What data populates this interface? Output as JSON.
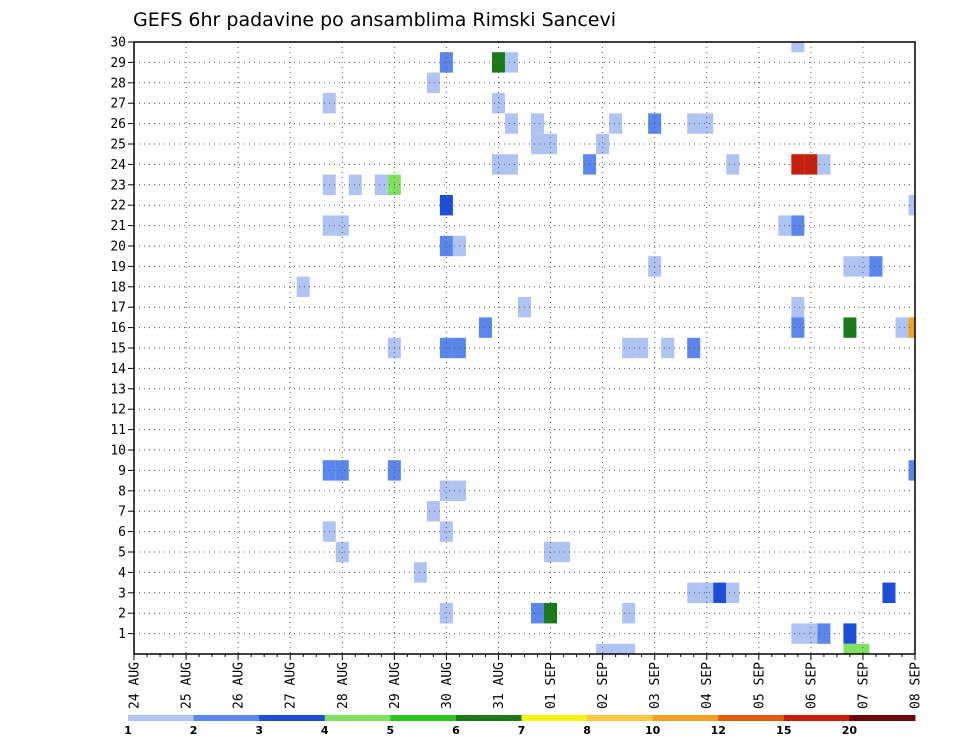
{
  "chart_data": {
    "type": "heatmap",
    "title": "GEFS 6hr padavine po ansamblima Rimski Sancevi",
    "x_tick_labels": [
      "24 AUG",
      "25 AUG",
      "26 AUG",
      "27 AUG",
      "28 AUG",
      "29 AUG",
      "30 AUG",
      "31 AUG",
      "01 SEP",
      "02 SEP",
      "03 SEP",
      "04 SEP",
      "05 SEP",
      "06 SEP",
      "07 SEP",
      "08 SEP"
    ],
    "x_unit": "6-hour steps from 24 AUG 00Z",
    "y_tick_labels": [
      "1",
      "2",
      "3",
      "4",
      "5",
      "6",
      "7",
      "8",
      "9",
      "10",
      "11",
      "12",
      "13",
      "14",
      "15",
      "16",
      "17",
      "18",
      "19",
      "20",
      "21",
      "22",
      "23",
      "24",
      "25",
      "26",
      "27",
      "28",
      "29",
      "30"
    ],
    "ylim": [
      0,
      30
    ],
    "grid": true,
    "legend_levels": [
      "1",
      "2",
      "3",
      "4",
      "5",
      "6",
      "7",
      "8",
      "10",
      "12",
      "15",
      "20"
    ],
    "legend_colors": [
      "#b0c4f4",
      "#5b87ec",
      "#1c4ed8",
      "#80e060",
      "#2ac820",
      "#1a7a1a",
      "#f4f410",
      "#f8c840",
      "#f4a020",
      "#e85a10",
      "#c81e0e",
      "#6a0a0a"
    ],
    "cells": [
      {
        "t": 51,
        "m": 30,
        "v": 1
      },
      {
        "t": 24,
        "m": 29,
        "v": 2
      },
      {
        "t": 28,
        "m": 29,
        "v": 6
      },
      {
        "t": 29,
        "m": 29,
        "v": 1
      },
      {
        "t": 23,
        "m": 28,
        "v": 1
      },
      {
        "t": 15,
        "m": 27,
        "v": 1
      },
      {
        "t": 28,
        "m": 27,
        "v": 1
      },
      {
        "t": 29,
        "m": 26,
        "v": 1
      },
      {
        "t": 31,
        "m": 26,
        "v": 1
      },
      {
        "t": 37,
        "m": 26,
        "v": 1
      },
      {
        "t": 40,
        "m": 26,
        "v": 2
      },
      {
        "t": 43,
        "m": 26,
        "v": 1
      },
      {
        "t": 44,
        "m": 26,
        "v": 1
      },
      {
        "t": 31,
        "m": 25,
        "v": 1
      },
      {
        "t": 32,
        "m": 25,
        "v": 1
      },
      {
        "t": 36,
        "m": 25,
        "v": 1
      },
      {
        "t": 28,
        "m": 24,
        "v": 1
      },
      {
        "t": 29,
        "m": 24,
        "v": 1
      },
      {
        "t": 35,
        "m": 24,
        "v": 2
      },
      {
        "t": 46,
        "m": 24,
        "v": 1
      },
      {
        "t": 51,
        "m": 24,
        "v": 15
      },
      {
        "t": 52,
        "m": 24,
        "v": 15
      },
      {
        "t": 53,
        "m": 24,
        "v": 1
      },
      {
        "t": 15,
        "m": 23,
        "v": 1
      },
      {
        "t": 17,
        "m": 23,
        "v": 1
      },
      {
        "t": 19,
        "m": 23,
        "v": 1
      },
      {
        "t": 20,
        "m": 23,
        "v": 4
      },
      {
        "t": 24,
        "m": 22,
        "v": 3
      },
      {
        "t": 60,
        "m": 22,
        "v": 1
      },
      {
        "t": 15,
        "m": 21,
        "v": 1
      },
      {
        "t": 16,
        "m": 21,
        "v": 1
      },
      {
        "t": 50,
        "m": 21,
        "v": 1
      },
      {
        "t": 51,
        "m": 21,
        "v": 2
      },
      {
        "t": 24,
        "m": 20,
        "v": 2
      },
      {
        "t": 25,
        "m": 20,
        "v": 1
      },
      {
        "t": 40,
        "m": 19,
        "v": 1
      },
      {
        "t": 55,
        "m": 19,
        "v": 1
      },
      {
        "t": 56,
        "m": 19,
        "v": 1
      },
      {
        "t": 57,
        "m": 19,
        "v": 2
      },
      {
        "t": 13,
        "m": 18,
        "v": 1
      },
      {
        "t": 30,
        "m": 17,
        "v": 1
      },
      {
        "t": 51,
        "m": 17,
        "v": 1
      },
      {
        "t": 27,
        "m": 16,
        "v": 2
      },
      {
        "t": 51,
        "m": 16,
        "v": 2
      },
      {
        "t": 55,
        "m": 16,
        "v": 6
      },
      {
        "t": 59,
        "m": 16,
        "v": 1
      },
      {
        "t": 60,
        "m": 16,
        "v": 10
      },
      {
        "t": 20,
        "m": 15,
        "v": 1
      },
      {
        "t": 24,
        "m": 15,
        "v": 2
      },
      {
        "t": 25,
        "m": 15,
        "v": 2
      },
      {
        "t": 38,
        "m": 15,
        "v": 1
      },
      {
        "t": 39,
        "m": 15,
        "v": 1
      },
      {
        "t": 41,
        "m": 15,
        "v": 1
      },
      {
        "t": 43,
        "m": 15,
        "v": 2
      },
      {
        "t": 15,
        "m": 9,
        "v": 2
      },
      {
        "t": 16,
        "m": 9,
        "v": 2
      },
      {
        "t": 20,
        "m": 9,
        "v": 2
      },
      {
        "t": 60,
        "m": 9,
        "v": 2
      },
      {
        "t": 24,
        "m": 8,
        "v": 1
      },
      {
        "t": 25,
        "m": 8,
        "v": 1
      },
      {
        "t": 23,
        "m": 7,
        "v": 1
      },
      {
        "t": 15,
        "m": 6,
        "v": 1
      },
      {
        "t": 24,
        "m": 6,
        "v": 1
      },
      {
        "t": 16,
        "m": 5,
        "v": 1
      },
      {
        "t": 32,
        "m": 5,
        "v": 1
      },
      {
        "t": 33,
        "m": 5,
        "v": 1
      },
      {
        "t": 22,
        "m": 4,
        "v": 1
      },
      {
        "t": 43,
        "m": 3,
        "v": 1
      },
      {
        "t": 44,
        "m": 3,
        "v": 1
      },
      {
        "t": 45,
        "m": 3,
        "v": 3
      },
      {
        "t": 46,
        "m": 3,
        "v": 1
      },
      {
        "t": 58,
        "m": 3,
        "v": 3
      },
      {
        "t": 24,
        "m": 2,
        "v": 1
      },
      {
        "t": 31,
        "m": 2,
        "v": 2
      },
      {
        "t": 32,
        "m": 2,
        "v": 6
      },
      {
        "t": 38,
        "m": 2,
        "v": 1
      },
      {
        "t": 51,
        "m": 1,
        "v": 1
      },
      {
        "t": 52,
        "m": 1,
        "v": 1
      },
      {
        "t": 53,
        "m": 1,
        "v": 2
      },
      {
        "t": 55,
        "m": 1,
        "v": 3
      },
      {
        "t": 36,
        "m": 0,
        "v": 1
      },
      {
        "t": 37,
        "m": 0,
        "v": 1
      },
      {
        "t": 38,
        "m": 0,
        "v": 1
      },
      {
        "t": 55,
        "m": 0,
        "v": 4
      },
      {
        "t": 56,
        "m": 0,
        "v": 4
      }
    ]
  }
}
